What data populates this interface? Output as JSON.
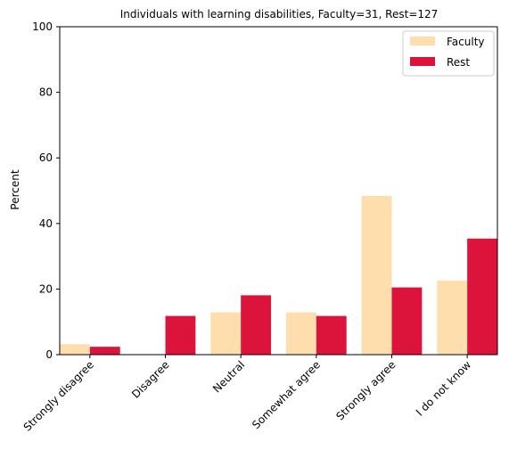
{
  "chart_data": {
    "type": "bar",
    "title": "Individuals with learning disabilities, Faculty=31, Rest=127",
    "xlabel": "",
    "ylabel": "Percent",
    "ylim": [
      0,
      100
    ],
    "yticks": [
      "0",
      "20",
      "40",
      "60",
      "80",
      "100"
    ],
    "categories": [
      "Strongly disagree",
      "Disagree",
      "Neutral",
      "Somewhat agree",
      "Strongly agree",
      "I do not know"
    ],
    "series": [
      {
        "name": "Faculty",
        "color": "#FFDEAD",
        "values": [
          3.2,
          0.0,
          12.9,
          12.9,
          48.4,
          22.6
        ]
      },
      {
        "name": "Rest",
        "color": "#DC143C",
        "values": [
          2.4,
          11.8,
          18.1,
          11.8,
          20.5,
          35.4
        ]
      }
    ],
    "grid": false,
    "legend_position": "top-right"
  }
}
